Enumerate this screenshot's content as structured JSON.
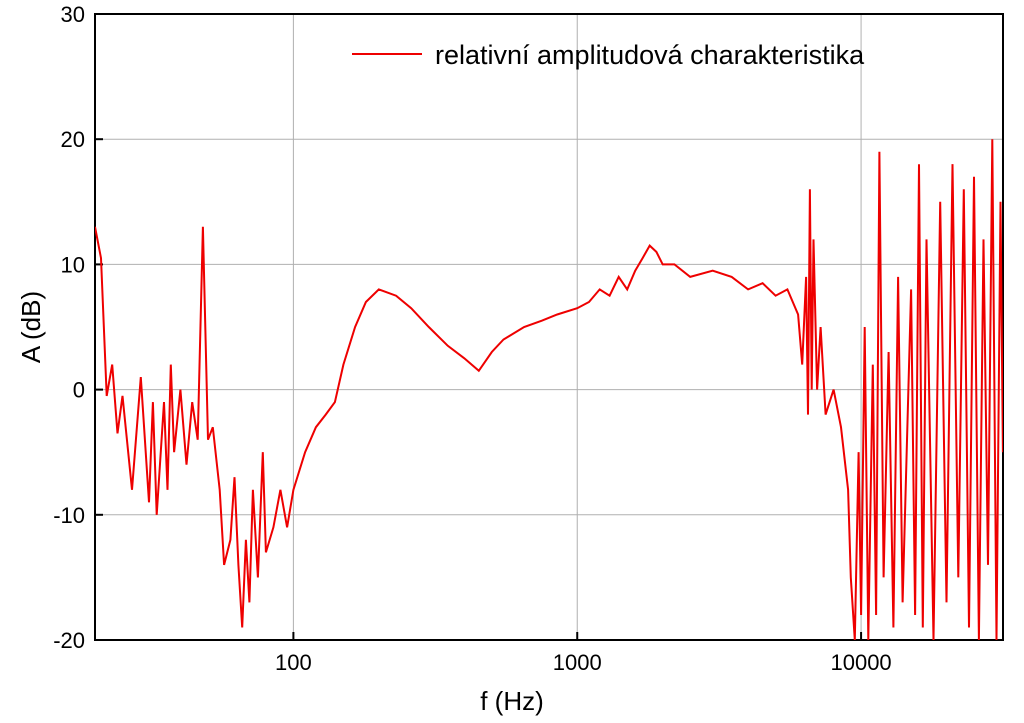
{
  "chart_data": {
    "type": "line",
    "xlabel": "f (Hz)",
    "ylabel": "A (dB)",
    "xscale": "log",
    "grid": true,
    "legend": "upper right",
    "xlim": [
      20,
      31623
    ],
    "xticks": [
      100,
      1000,
      10000
    ],
    "ylim": [
      -20,
      30
    ],
    "yticks": [
      -20,
      -10,
      0,
      10,
      20,
      30
    ],
    "x": [
      20,
      21,
      22,
      23,
      24,
      25,
      27,
      29,
      31,
      32,
      33,
      35,
      36,
      37,
      38,
      40,
      42,
      44,
      46,
      48,
      50,
      52,
      55,
      57,
      60,
      62,
      64,
      66,
      68,
      70,
      72,
      75,
      78,
      80,
      85,
      90,
      95,
      100,
      110,
      120,
      130,
      140,
      150,
      165,
      180,
      200,
      230,
      260,
      300,
      350,
      400,
      450,
      500,
      550,
      650,
      750,
      850,
      1000,
      1100,
      1200,
      1300,
      1400,
      1500,
      1600,
      1700,
      1800,
      1900,
      2000,
      2200,
      2500,
      3000,
      3500,
      4000,
      4500,
      5000,
      5500,
      6000,
      6200,
      6400,
      6500,
      6600,
      6700,
      6800,
      7000,
      7200,
      7500,
      8000,
      8500,
      9000,
      9200,
      9500,
      9800,
      10000,
      10300,
      10600,
      11000,
      11300,
      11600,
      12000,
      12500,
      13000,
      13500,
      14000,
      15000,
      15500,
      16000,
      16500,
      17000,
      18000,
      19000,
      20000,
      21000,
      22000,
      23000,
      24000,
      25000,
      26000,
      27000,
      28000,
      29000,
      30000,
      31000,
      31600
    ],
    "series": [
      {
        "name": "relativní amplitudová charakteristika",
        "color": "#ee0000",
        "values": [
          13,
          10.5,
          -0.5,
          2,
          -3.5,
          -0.5,
          -8,
          1,
          -9,
          -1,
          -10,
          -1,
          -8,
          2,
          -5,
          0,
          -6,
          -1,
          -4,
          13,
          -4,
          -3,
          -8,
          -14,
          -12,
          -7,
          -14,
          -19,
          -12,
          -17,
          -8,
          -15,
          -5,
          -13,
          -11,
          -8,
          -11,
          -8,
          -5,
          -3,
          -2,
          -1,
          2,
          5,
          7,
          8,
          7.5,
          6.5,
          5,
          3.5,
          2.5,
          1.5,
          3,
          4,
          5,
          5.5,
          6,
          6.5,
          7,
          8,
          7.5,
          9,
          8,
          9.5,
          10.5,
          11.5,
          11,
          10,
          10,
          9,
          9.5,
          9,
          8,
          8.5,
          7.5,
          8,
          6,
          2,
          9,
          -2,
          16,
          0,
          12,
          0,
          5,
          -2,
          0,
          -3,
          -8,
          -15,
          -20,
          -5,
          -18,
          5,
          -20,
          2,
          -18,
          19,
          -15,
          3,
          -19,
          9,
          -17,
          8,
          -18,
          18,
          -19,
          12,
          -20,
          15,
          -17,
          18,
          -15,
          16,
          -19,
          17,
          -20,
          12,
          -14,
          20,
          -20,
          15,
          -5
        ]
      }
    ]
  }
}
